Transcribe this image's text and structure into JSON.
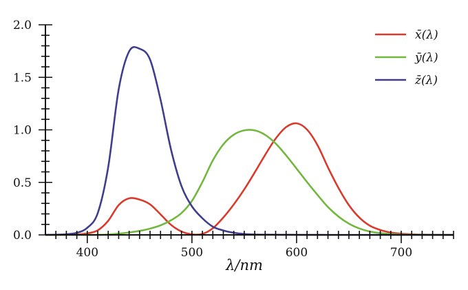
{
  "chart_data": {
    "type": "line",
    "title": "",
    "xlabel": "λ/nm",
    "ylabel": "",
    "xlim": [
      360,
      750
    ],
    "ylim": [
      0,
      2.0
    ],
    "x_ticks": [
      "400",
      "500",
      "600",
      "700"
    ],
    "y_ticks": [
      "0.0",
      "0.5",
      "1.0",
      "1.5",
      "2.0"
    ],
    "x_minor_step": 10,
    "y_minor_step": 0.1,
    "grid": false,
    "legend_position": "top-right",
    "x": [
      360,
      370,
      380,
      390,
      400,
      410,
      420,
      430,
      440,
      450,
      460,
      470,
      480,
      490,
      500,
      510,
      520,
      530,
      540,
      550,
      560,
      570,
      580,
      590,
      600,
      610,
      620,
      630,
      640,
      650,
      660,
      670,
      680,
      690,
      700,
      710,
      720,
      730,
      740,
      750
    ],
    "series": [
      {
        "name": "x̄(λ)",
        "color": "#d93a2b",
        "values": [
          0.0001,
          0.0004,
          0.0014,
          0.0042,
          0.0143,
          0.0435,
          0.1344,
          0.2839,
          0.3483,
          0.3362,
          0.2908,
          0.1954,
          0.0956,
          0.032,
          0.0049,
          0.0093,
          0.0633,
          0.1655,
          0.2904,
          0.4334,
          0.5945,
          0.7621,
          0.9163,
          1.0263,
          1.0622,
          1.0026,
          0.8544,
          0.6424,
          0.4479,
          0.2835,
          0.1649,
          0.0874,
          0.0468,
          0.0227,
          0.0114,
          0.0058,
          0.0029,
          0.0014,
          0.0007,
          0.0003
        ]
      },
      {
        "name": "ȳ(λ)",
        "color": "#72b83e",
        "values": [
          0,
          0,
          0,
          0.0001,
          0.0004,
          0.0012,
          0.004,
          0.0116,
          0.023,
          0.038,
          0.06,
          0.091,
          0.139,
          0.208,
          0.323,
          0.503,
          0.71,
          0.862,
          0.954,
          0.995,
          0.995,
          0.952,
          0.87,
          0.757,
          0.631,
          0.503,
          0.381,
          0.265,
          0.175,
          0.107,
          0.061,
          0.032,
          0.017,
          0.0082,
          0.0041,
          0.0021,
          0.001,
          0.0005,
          0.0002,
          0.0001
        ]
      },
      {
        "name": "z̄(λ)",
        "color": "#3f3d8c",
        "values": [
          0.0006,
          0.0019,
          0.0065,
          0.0201,
          0.0679,
          0.2074,
          0.6456,
          1.3856,
          1.7471,
          1.7721,
          1.6692,
          1.2876,
          0.813,
          0.4652,
          0.272,
          0.1582,
          0.0782,
          0.0422,
          0.0203,
          0.0087,
          0.0039,
          0.0021,
          0.0017,
          0.0011,
          0.0008,
          0.0003,
          0.0002,
          0,
          0,
          0,
          0,
          0,
          0,
          0,
          0,
          0,
          0,
          0,
          0,
          0
        ]
      }
    ]
  }
}
